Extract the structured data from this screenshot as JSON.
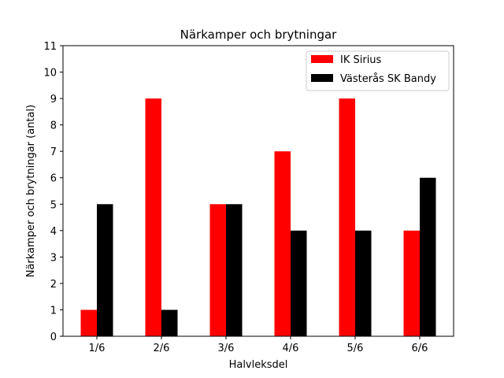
{
  "chart_data": {
    "type": "bar",
    "title": "Närkamper och brytningar",
    "xlabel": "Halvleksdel",
    "ylabel": "Närkamper och brytningar (antal)",
    "categories": [
      "1/6",
      "2/6",
      "3/6",
      "4/6",
      "5/6",
      "6/6"
    ],
    "series": [
      {
        "name": "IK Sirius",
        "color": "#ff0000",
        "values": [
          1,
          9,
          5,
          7,
          9,
          4
        ]
      },
      {
        "name": "Västerås SK Bandy",
        "color": "#000000",
        "values": [
          5,
          1,
          5,
          4,
          4,
          6
        ]
      }
    ],
    "ylim": [
      0,
      11
    ],
    "yticks": [
      "0",
      "1",
      "2",
      "3",
      "4",
      "5",
      "6",
      "7",
      "8",
      "9",
      "10",
      "11"
    ],
    "legend_position": "top-right",
    "grid": false
  }
}
